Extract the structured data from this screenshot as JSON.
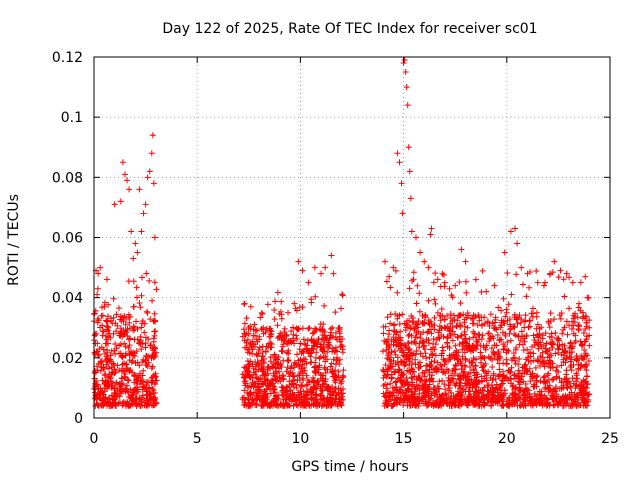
{
  "chart_data": {
    "type": "scatter",
    "title": "Day 122 of 2025, Rate Of TEC Index for receiver sc01",
    "xlabel": "GPS time / hours",
    "ylabel": "ROTI / TECUs",
    "xlim": [
      0,
      25
    ],
    "ylim": [
      0,
      0.12
    ],
    "xticks": [
      0,
      5,
      10,
      15,
      20,
      25
    ],
    "yticks": [
      0,
      0.02,
      0.04,
      0.06,
      0.08,
      0.1,
      0.12
    ],
    "xtick_labels": [
      "0",
      "5",
      "10",
      "15",
      "20",
      "25"
    ],
    "ytick_labels": [
      "0",
      "0.02",
      "0.04",
      "0.06",
      "0.08",
      "0.1",
      "0.12"
    ],
    "grid": true,
    "marker": "+",
    "color": "#ff0000",
    "series": [
      {
        "name": "ROTI",
        "segments": [
          {
            "x_start": 0.0,
            "x_end": 3.05,
            "typical_max": 0.035,
            "peak": 0.094
          },
          {
            "x_start": 7.2,
            "x_end": 12.1,
            "typical_max": 0.03,
            "peak": 0.054
          },
          {
            "x_start": 14.0,
            "x_end": 24.0,
            "typical_max": 0.035,
            "peak": 0.119
          }
        ],
        "points": [
          [
            0.1,
            0.049
          ],
          [
            0.2,
            0.048
          ],
          [
            0.3,
            0.05
          ],
          [
            0.15,
            0.041
          ],
          [
            0.5,
            0.037
          ],
          [
            1.0,
            0.071
          ],
          [
            1.3,
            0.072
          ],
          [
            1.4,
            0.085
          ],
          [
            1.5,
            0.081
          ],
          [
            1.6,
            0.079
          ],
          [
            1.7,
            0.076
          ],
          [
            1.8,
            0.062
          ],
          [
            2.0,
            0.058
          ],
          [
            2.2,
            0.076
          ],
          [
            2.4,
            0.068
          ],
          [
            2.5,
            0.071
          ],
          [
            2.6,
            0.08
          ],
          [
            2.7,
            0.082
          ],
          [
            2.8,
            0.088
          ],
          [
            2.85,
            0.094
          ],
          [
            2.9,
            0.078
          ],
          [
            2.95,
            0.06
          ],
          [
            2.3,
            0.062
          ],
          [
            2.1,
            0.055
          ],
          [
            1.9,
            0.053
          ],
          [
            7.3,
            0.038
          ],
          [
            7.6,
            0.037
          ],
          [
            8.2,
            0.03
          ],
          [
            9.1,
            0.033
          ],
          [
            9.4,
            0.035
          ],
          [
            9.7,
            0.038
          ],
          [
            9.9,
            0.052
          ],
          [
            10.1,
            0.049
          ],
          [
            10.4,
            0.045
          ],
          [
            10.7,
            0.05
          ],
          [
            11.0,
            0.048
          ],
          [
            11.2,
            0.05
          ],
          [
            11.5,
            0.054
          ],
          [
            11.6,
            0.048
          ],
          [
            11.9,
            0.03
          ],
          [
            14.1,
            0.052
          ],
          [
            14.3,
            0.047
          ],
          [
            14.5,
            0.05
          ],
          [
            14.7,
            0.088
          ],
          [
            14.8,
            0.085
          ],
          [
            14.9,
            0.078
          ],
          [
            14.95,
            0.068
          ],
          [
            15.0,
            0.118
          ],
          [
            15.05,
            0.119
          ],
          [
            15.1,
            0.115
          ],
          [
            15.15,
            0.11
          ],
          [
            15.2,
            0.104
          ],
          [
            15.25,
            0.09
          ],
          [
            15.3,
            0.082
          ],
          [
            15.35,
            0.073
          ],
          [
            15.4,
            0.062
          ],
          [
            15.6,
            0.06
          ],
          [
            15.8,
            0.055
          ],
          [
            16.0,
            0.052
          ],
          [
            16.2,
            0.05
          ],
          [
            16.3,
            0.061
          ],
          [
            16.35,
            0.063
          ],
          [
            17.0,
            0.045
          ],
          [
            17.5,
            0.044
          ],
          [
            17.8,
            0.056
          ],
          [
            18.0,
            0.052
          ],
          [
            18.5,
            0.046
          ],
          [
            19.0,
            0.042
          ],
          [
            19.4,
            0.044
          ],
          [
            19.9,
            0.055
          ],
          [
            20.2,
            0.062
          ],
          [
            20.4,
            0.063
          ],
          [
            20.5,
            0.058
          ],
          [
            20.7,
            0.05
          ],
          [
            21.0,
            0.048
          ],
          [
            21.5,
            0.045
          ],
          [
            21.8,
            0.044
          ],
          [
            22.1,
            0.048
          ],
          [
            22.3,
            0.052
          ],
          [
            22.6,
            0.049
          ],
          [
            22.9,
            0.048
          ],
          [
            23.2,
            0.045
          ],
          [
            23.5,
            0.038
          ],
          [
            23.8,
            0.047
          ],
          [
            23.9,
            0.04
          ]
        ]
      }
    ]
  }
}
